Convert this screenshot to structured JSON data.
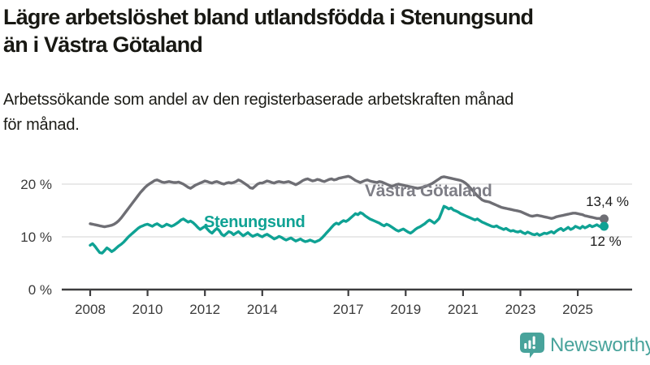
{
  "header": {
    "title_lines": [
      "Lägre arbetslöshet bland utlandsfödda i Stenungsund",
      "än i Västra Götaland"
    ],
    "subtitle_lines": [
      "Arbetssökande som andel av den registerbaserade arbetskraften månad",
      "för månad."
    ]
  },
  "chart_data": {
    "type": "line",
    "title": "Lägre arbetslöshet bland utlandsfödda i Stenungsund än i Västra Götaland",
    "subtitle": "Arbetssökande som andel av den registerbaserade arbetskraften månad för månad.",
    "xlabel": "",
    "ylabel": "",
    "grid": "horizontal",
    "legend_position": "inline-labels",
    "x_start_year": 2008,
    "points_per_year": 12,
    "x_tick_years": [
      2008,
      2010,
      2012,
      2014,
      2017,
      2019,
      2021,
      2023,
      2025
    ],
    "y_ticks": [
      {
        "value": 0,
        "label": "0 %"
      },
      {
        "value": 10,
        "label": "10 %"
      },
      {
        "value": 20,
        "label": "20 %"
      }
    ],
    "ylim": [
      0,
      24
    ],
    "gridline_color": "#dcdcdc",
    "axis_color": "#3d3d3f",
    "series": [
      {
        "id": "vastra-gotaland",
        "name": "Västra Götaland",
        "color": "#6e6e74",
        "label_color": "#7e7e86",
        "end_label": "13,4 %",
        "end_value": 13.4,
        "values": [
          12.5,
          12.4,
          12.3,
          12.2,
          12.1,
          12.0,
          11.9,
          12.0,
          12.1,
          12.2,
          12.4,
          12.7,
          13.1,
          13.6,
          14.2,
          14.8,
          15.4,
          16.0,
          16.6,
          17.2,
          17.8,
          18.4,
          18.9,
          19.4,
          19.8,
          20.1,
          20.4,
          20.7,
          20.8,
          20.6,
          20.4,
          20.3,
          20.4,
          20.5,
          20.4,
          20.3,
          20.3,
          20.4,
          20.2,
          20.0,
          19.7,
          19.4,
          19.2,
          19.5,
          19.8,
          20.0,
          20.2,
          20.4,
          20.6,
          20.5,
          20.3,
          20.2,
          20.4,
          20.5,
          20.3,
          20.1,
          20.0,
          20.2,
          20.3,
          20.2,
          20.3,
          20.5,
          20.8,
          20.6,
          20.3,
          20.0,
          19.7,
          19.3,
          19.2,
          19.6,
          20.0,
          20.2,
          20.2,
          20.4,
          20.6,
          20.5,
          20.3,
          20.2,
          20.4,
          20.5,
          20.4,
          20.3,
          20.4,
          20.5,
          20.3,
          20.1,
          19.9,
          20.1,
          20.4,
          20.7,
          20.9,
          21.0,
          20.8,
          20.6,
          20.7,
          20.9,
          20.8,
          20.6,
          20.5,
          20.7,
          20.9,
          21.0,
          20.8,
          20.9,
          21.1,
          21.2,
          21.3,
          21.4,
          21.5,
          21.3,
          21.0,
          20.7,
          20.5,
          20.3,
          20.5,
          20.7,
          20.8,
          20.6,
          20.5,
          20.4,
          20.3,
          20.5,
          20.4,
          20.2,
          20.0,
          19.8,
          19.6,
          19.7,
          19.9,
          20.0,
          19.9,
          19.8,
          19.7,
          19.6,
          19.5,
          19.4,
          19.3,
          19.2,
          19.3,
          19.4,
          19.5,
          19.7,
          19.9,
          20.1,
          20.4,
          20.7,
          21.0,
          21.3,
          21.4,
          21.3,
          21.2,
          21.1,
          21.0,
          20.9,
          20.8,
          20.7,
          20.5,
          20.2,
          19.8,
          19.3,
          18.8,
          18.3,
          17.8,
          17.4,
          17.0,
          16.8,
          16.7,
          16.6,
          16.4,
          16.2,
          16.0,
          15.8,
          15.6,
          15.5,
          15.4,
          15.3,
          15.2,
          15.1,
          15.0,
          14.9,
          14.8,
          14.6,
          14.4,
          14.2,
          14.0,
          13.9,
          14.0,
          14.1,
          14.0,
          13.9,
          13.8,
          13.7,
          13.6,
          13.5,
          13.6,
          13.8,
          13.9,
          14.0,
          14.1,
          14.2,
          14.3,
          14.4,
          14.5,
          14.5,
          14.4,
          14.3,
          14.2,
          14.0,
          13.9,
          13.8,
          13.7,
          13.6,
          13.5,
          13.5,
          13.4,
          13.4
        ]
      },
      {
        "id": "stenungsund",
        "name": "Stenungsund",
        "color": "#0fa294",
        "label_color": "#0fa294",
        "end_label": "12 %",
        "end_value": 12.0,
        "values": [
          8.4,
          8.7,
          8.2,
          7.6,
          7.0,
          6.9,
          7.4,
          7.9,
          7.6,
          7.2,
          7.5,
          7.9,
          8.3,
          8.6,
          9.0,
          9.5,
          10.0,
          10.4,
          10.8,
          11.2,
          11.6,
          11.9,
          12.1,
          12.3,
          12.4,
          12.2,
          12.0,
          12.3,
          12.5,
          12.2,
          11.9,
          12.1,
          12.4,
          12.2,
          12.0,
          12.2,
          12.5,
          12.8,
          13.2,
          13.4,
          13.1,
          12.8,
          13.0,
          12.7,
          12.3,
          11.8,
          11.4,
          11.7,
          12.0,
          11.5,
          11.0,
          10.7,
          11.2,
          11.6,
          11.2,
          10.5,
          10.2,
          10.6,
          11.0,
          10.8,
          10.4,
          10.7,
          11.0,
          10.6,
          10.2,
          10.5,
          10.8,
          10.4,
          10.1,
          10.3,
          10.5,
          10.2,
          10.0,
          10.3,
          10.5,
          10.2,
          9.9,
          9.6,
          9.8,
          10.1,
          9.9,
          9.6,
          9.4,
          9.6,
          9.8,
          9.5,
          9.2,
          9.4,
          9.6,
          9.3,
          9.1,
          9.2,
          9.4,
          9.2,
          9.0,
          9.2,
          9.4,
          9.8,
          10.3,
          10.8,
          11.3,
          11.8,
          12.3,
          12.6,
          12.4,
          12.8,
          13.1,
          12.9,
          13.2,
          13.6,
          14.0,
          14.4,
          14.2,
          14.6,
          14.4,
          14.0,
          13.7,
          13.4,
          13.2,
          13.0,
          12.8,
          12.6,
          12.3,
          12.1,
          12.4,
          12.2,
          11.9,
          11.6,
          11.3,
          11.1,
          11.3,
          11.5,
          11.2,
          10.9,
          10.7,
          11.0,
          11.4,
          11.7,
          11.9,
          12.2,
          12.5,
          12.9,
          13.2,
          12.9,
          12.6,
          13.0,
          13.5,
          14.6,
          15.8,
          15.6,
          15.3,
          15.5,
          15.1,
          14.9,
          14.7,
          14.4,
          14.2,
          14.0,
          13.8,
          13.6,
          13.4,
          13.2,
          13.4,
          13.1,
          12.8,
          12.6,
          12.4,
          12.2,
          12.0,
          11.9,
          12.1,
          11.8,
          11.6,
          11.4,
          11.6,
          11.3,
          11.1,
          11.2,
          11.0,
          10.9,
          11.1,
          10.8,
          10.6,
          10.9,
          10.7,
          10.5,
          10.4,
          10.6,
          10.3,
          10.5,
          10.7,
          10.6,
          10.8,
          11.0,
          10.7,
          11.1,
          11.4,
          11.6,
          11.2,
          11.5,
          11.8,
          11.4,
          11.6,
          12.0,
          11.8,
          11.6,
          12.0,
          11.7,
          11.9,
          12.2,
          11.9,
          12.1,
          12.3,
          12.0,
          11.8,
          12.0
        ]
      }
    ]
  },
  "branding": {
    "logo_text": "Newsworthy",
    "logo_color": "#48a39b",
    "logo_icon": "bar-chart-speech-bubble-icon"
  }
}
